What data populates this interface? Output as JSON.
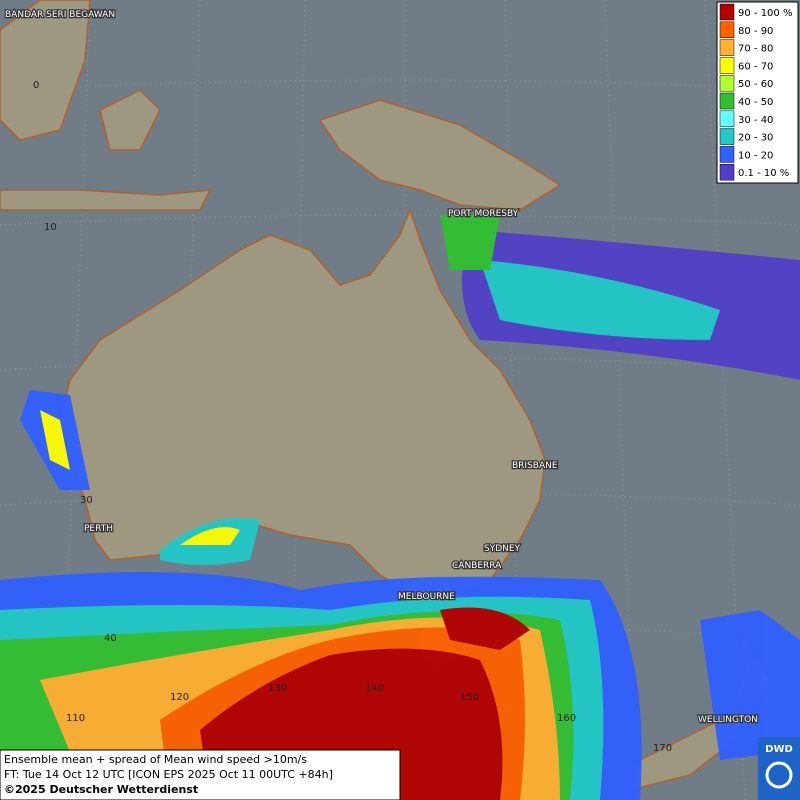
{
  "legend": {
    "entries": [
      {
        "label": "90 - 100 %",
        "color": "#b40000"
      },
      {
        "label": "80 - 90",
        "color": "#ff6000"
      },
      {
        "label": "70 - 80",
        "color": "#ffb030"
      },
      {
        "label": "60 - 70",
        "color": "#ffff00"
      },
      {
        "label": "50 - 60",
        "color": "#b0ff30"
      },
      {
        "label": "40 - 50",
        "color": "#30c030"
      },
      {
        "label": "30 - 40",
        "color": "#60ffff"
      },
      {
        "label": "20 - 30",
        "color": "#20c8c8"
      },
      {
        "label": "10 - 20",
        "color": "#3060ff"
      },
      {
        "label": "0.1 - 10 %",
        "color": "#5040c8"
      }
    ]
  },
  "places": [
    "BANDAR SERI BEGAWAN",
    "PORT MORESBY",
    "BRISBANE",
    "PERTH",
    "SYDNEY",
    "CANBERRA",
    "MELBOURNE",
    "WELLINGTON"
  ],
  "grid_labels": [
    "0",
    "10",
    "30",
    "40",
    "110",
    "120",
    "130",
    "140",
    "150",
    "160",
    "170"
  ],
  "caption": {
    "lines": [
      "Ensemble mean + spread of Mean wind speed >10m/s",
      "FT: Tue 14 Oct 12 UTC [ICON EPS 2025 Oct 11 00UTC +84h]",
      "©2025 Deutscher Wetterdienst"
    ]
  },
  "logo": "DWD"
}
